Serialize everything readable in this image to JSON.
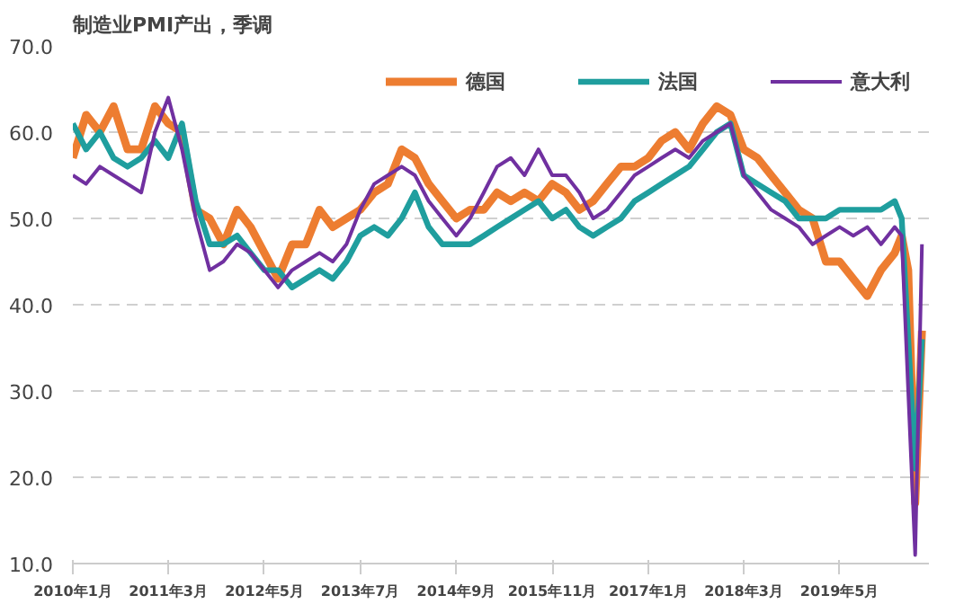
{
  "chart_data": {
    "type": "line",
    "title": "制造业PMI产出，季调",
    "x": [
      "2010-01",
      "2010-03",
      "2010-05",
      "2010-07",
      "2010-09",
      "2010-11",
      "2011-01",
      "2011-03",
      "2011-05",
      "2011-07",
      "2011-09",
      "2011-11",
      "2012-01",
      "2012-03",
      "2012-05",
      "2012-07",
      "2012-09",
      "2012-11",
      "2013-01",
      "2013-03",
      "2013-05",
      "2013-07",
      "2013-09",
      "2013-11",
      "2014-01",
      "2014-03",
      "2014-05",
      "2014-07",
      "2014-09",
      "2014-11",
      "2015-01",
      "2015-03",
      "2015-05",
      "2015-07",
      "2015-09",
      "2015-11",
      "2016-01",
      "2016-03",
      "2016-05",
      "2016-07",
      "2016-09",
      "2016-11",
      "2017-01",
      "2017-03",
      "2017-05",
      "2017-07",
      "2017-09",
      "2017-11",
      "2018-01",
      "2018-03",
      "2018-05",
      "2018-07",
      "2018-09",
      "2018-11",
      "2019-01",
      "2019-03",
      "2019-05",
      "2019-07",
      "2019-09",
      "2019-11",
      "2020-01",
      "2020-02",
      "2020-03",
      "2020-04",
      "2020-05"
    ],
    "series": [
      {
        "name": "德国",
        "color": "#ed7d31",
        "values": [
          57,
          62,
          60,
          63,
          58,
          58,
          63,
          61,
          60,
          51,
          50,
          47,
          51,
          49,
          46,
          43,
          47,
          47,
          51,
          49,
          50,
          51,
          53,
          54,
          58,
          57,
          54,
          52,
          50,
          51,
          51,
          53,
          52,
          53,
          52,
          54,
          53,
          51,
          52,
          54,
          56,
          56,
          57,
          59,
          60,
          58,
          61,
          63,
          62,
          58,
          57,
          55,
          53,
          51,
          50,
          45,
          45,
          43,
          41,
          44,
          46,
          48,
          44,
          17,
          37
        ]
      },
      {
        "name": "法国",
        "color": "#1f9e9e",
        "values": [
          61,
          58,
          60,
          57,
          56,
          57,
          59,
          57,
          61,
          52,
          47,
          47,
          48,
          46,
          44,
          44,
          42,
          43,
          44,
          43,
          45,
          48,
          49,
          48,
          50,
          53,
          49,
          47,
          47,
          47,
          48,
          49,
          50,
          51,
          52,
          50,
          51,
          49,
          48,
          49,
          50,
          52,
          53,
          54,
          55,
          56,
          58,
          60,
          61,
          55,
          54,
          53,
          52,
          50,
          50,
          50,
          51,
          51,
          51,
          51,
          52,
          50,
          36,
          21,
          36
        ]
      },
      {
        "name": "意大利",
        "color": "#7030a0",
        "values": [
          55,
          54,
          56,
          55,
          54,
          53,
          60,
          64,
          58,
          50,
          44,
          45,
          47,
          46,
          44,
          42,
          44,
          45,
          46,
          45,
          47,
          51,
          54,
          55,
          56,
          55,
          52,
          50,
          48,
          50,
          53,
          56,
          57,
          55,
          58,
          55,
          55,
          53,
          50,
          51,
          53,
          55,
          56,
          57,
          58,
          57,
          59,
          60,
          61,
          55,
          53,
          51,
          50,
          49,
          47,
          48,
          49,
          48,
          49,
          47,
          49,
          48,
          30,
          11,
          47
        ]
      }
    ],
    "xlim": [
      "2010-01",
      "2020-06"
    ],
    "xticks": [
      {
        "value": "2010-01",
        "label": "2010年1月"
      },
      {
        "value": "2011-03",
        "label": "2011年3月"
      },
      {
        "value": "2012-05",
        "label": "2012年5月"
      },
      {
        "value": "2013-07",
        "label": "2013年7月"
      },
      {
        "value": "2014-09",
        "label": "2014年9月"
      },
      {
        "value": "2015-11",
        "label": "2015年11月"
      },
      {
        "value": "2017-01",
        "label": "2017年1月"
      },
      {
        "value": "2018-03",
        "label": "2018年3月"
      },
      {
        "value": "2019-05",
        "label": "2019年5月"
      }
    ],
    "ylim": [
      10,
      70
    ],
    "yticks": [
      {
        "value": 10,
        "label": "10.0"
      },
      {
        "value": 20,
        "label": "20.0"
      },
      {
        "value": 30,
        "label": "30.0"
      },
      {
        "value": 40,
        "label": "40.0"
      },
      {
        "value": 50,
        "label": "50.0"
      },
      {
        "value": 60,
        "label": "60.0"
      },
      {
        "value": 70,
        "label": "70.0"
      }
    ],
    "grid": "y",
    "legend": "top right",
    "marker": "none",
    "line_style": "solid"
  }
}
